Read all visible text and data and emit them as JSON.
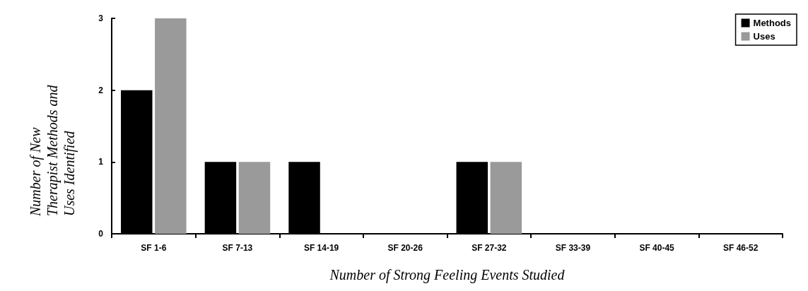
{
  "chart_data": {
    "type": "bar",
    "xlabel": "Number of Strong Feeling Events Studied",
    "ylabel": "Number of New Therapist Methods and Uses Identified",
    "categories": [
      "SF 1-6",
      "SF 7-13",
      "SF 14-19",
      "SF 20-26",
      "SF 27-32",
      "SF 33-39",
      "SF 40-45",
      "SF 46-52"
    ],
    "series": [
      {
        "name": "Methods",
        "color": "#000000",
        "values": [
          2,
          1,
          1,
          0,
          1,
          0,
          0,
          0
        ]
      },
      {
        "name": "Uses",
        "color": "#9a9a9a",
        "values": [
          3,
          1,
          0,
          0,
          1,
          0,
          0,
          0
        ]
      }
    ],
    "ylim": [
      0,
      3
    ],
    "yticks": [
      0,
      1,
      2,
      3
    ],
    "grid": false,
    "legend": "top right"
  }
}
